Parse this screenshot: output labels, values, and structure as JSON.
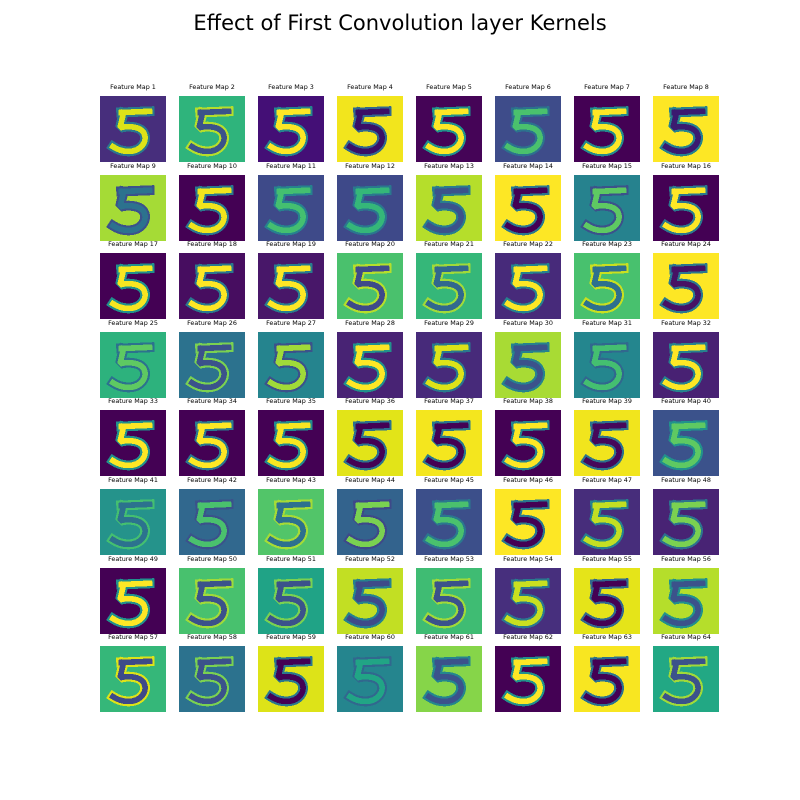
{
  "chart_data": {
    "type": "heatmap",
    "title": "Effect of First Convolution layer Kernels",
    "label_prefix": "Feature Map",
    "grid": {
      "rows": 8,
      "cols": 8
    },
    "colormap": "viridis",
    "feature_maps": [
      {
        "label": "Feature Map 1",
        "background": "#472e7c",
        "stroke": "#dde318",
        "edge": "#2a788e"
      },
      {
        "label": "Feature Map 2",
        "background": "#2fb47c",
        "stroke": "#3b528b",
        "edge": "#b5de2b"
      },
      {
        "label": "Feature Map 3",
        "background": "#440f76",
        "stroke": "#fde725",
        "edge": "#25838e"
      },
      {
        "label": "Feature Map 4",
        "background": "#f2e51d",
        "stroke": "#3a0f66",
        "edge": "#31688e"
      },
      {
        "label": "Feature Map 5",
        "background": "#450457",
        "stroke": "#fde725",
        "edge": "#21918c"
      },
      {
        "label": "Feature Map 6",
        "background": "#3e4c8a",
        "stroke": "#4ac16d",
        "edge": "#2c728e"
      },
      {
        "label": "Feature Map 7",
        "background": "#440154",
        "stroke": "#fde725",
        "edge": "#238a8d"
      },
      {
        "label": "Feature Map 8",
        "background": "#fde725",
        "stroke": "#3b1a70",
        "edge": "#26828e"
      },
      {
        "label": "Feature Map 9",
        "background": "#a5db36",
        "stroke": "#2c728e",
        "edge": "#3b528b"
      },
      {
        "label": "Feature Map 10",
        "background": "#440154",
        "stroke": "#f1e51d",
        "edge": "#2a788e"
      },
      {
        "label": "Feature Map 11",
        "background": "#3e4a89",
        "stroke": "#44bf70",
        "edge": "#26828e"
      },
      {
        "label": "Feature Map 12",
        "background": "#3e4989",
        "stroke": "#35b779",
        "edge": "#2a788e"
      },
      {
        "label": "Feature Map 13",
        "background": "#b5de2b",
        "stroke": "#3b528b",
        "edge": "#287d8e"
      },
      {
        "label": "Feature Map 14",
        "background": "#fde725",
        "stroke": "#440154",
        "edge": "#2a788e"
      },
      {
        "label": "Feature Map 15",
        "background": "#26828e",
        "stroke": "#5ec962",
        "edge": "#3b528b"
      },
      {
        "label": "Feature Map 16",
        "background": "#440154",
        "stroke": "#fde725",
        "edge": "#2a788e"
      },
      {
        "label": "Feature Map 17",
        "background": "#440154",
        "stroke": "#f8e621",
        "edge": "#21918c"
      },
      {
        "label": "Feature Map 18",
        "background": "#470d60",
        "stroke": "#fde725",
        "edge": "#2a788e"
      },
      {
        "label": "Feature Map 19",
        "background": "#481769",
        "stroke": "#fde725",
        "edge": "#287d8e"
      },
      {
        "label": "Feature Map 20",
        "background": "#4ac16d",
        "stroke": "#3e4a89",
        "edge": "#b5de2b"
      },
      {
        "label": "Feature Map 21",
        "background": "#35b779",
        "stroke": "#31688e",
        "edge": "#a0da39"
      },
      {
        "label": "Feature Map 22",
        "background": "#472a7a",
        "stroke": "#fde725",
        "edge": "#26828e"
      },
      {
        "label": "Feature Map 23",
        "background": "#48c16e",
        "stroke": "#2d708e",
        "edge": "#c8e020"
      },
      {
        "label": "Feature Map 24",
        "background": "#fde725",
        "stroke": "#471164",
        "edge": "#2a788e"
      },
      {
        "label": "Feature Map 25",
        "background": "#2db27d",
        "stroke": "#5ec962",
        "edge": "#2c728e"
      },
      {
        "label": "Feature Map 26",
        "background": "#2c728e",
        "stroke": "#3b528b",
        "edge": "#7ad151"
      },
      {
        "label": "Feature Map 27",
        "background": "#25848e",
        "stroke": "#a0da39",
        "edge": "#3b528b"
      },
      {
        "label": "Feature Map 28",
        "background": "#482374",
        "stroke": "#fde725",
        "edge": "#21918c"
      },
      {
        "label": "Feature Map 29",
        "background": "#472a7a",
        "stroke": "#dde318",
        "edge": "#2a788e"
      },
      {
        "label": "Feature Map 30",
        "background": "#a8db34",
        "stroke": "#3b528b",
        "edge": "#26828e"
      },
      {
        "label": "Feature Map 31",
        "background": "#24868e",
        "stroke": "#44bf70",
        "edge": "#31688e"
      },
      {
        "label": "Feature Map 32",
        "background": "#482173",
        "stroke": "#fde725",
        "edge": "#26828e"
      },
      {
        "label": "Feature Map 33",
        "background": "#440154",
        "stroke": "#fde725",
        "edge": "#21918c"
      },
      {
        "label": "Feature Map 34",
        "background": "#440154",
        "stroke": "#fde725",
        "edge": "#2a788e"
      },
      {
        "label": "Feature Map 35",
        "background": "#440154",
        "stroke": "#f8e621",
        "edge": "#238a8d"
      },
      {
        "label": "Feature Map 36",
        "background": "#e2e418",
        "stroke": "#440154",
        "edge": "#2c728e"
      },
      {
        "label": "Feature Map 37",
        "background": "#f4e61e",
        "stroke": "#440154",
        "edge": "#2a788e"
      },
      {
        "label": "Feature Map 38",
        "background": "#440154",
        "stroke": "#fde725",
        "edge": "#26828e"
      },
      {
        "label": "Feature Map 39",
        "background": "#f1e51d",
        "stroke": "#46075a",
        "edge": "#2c728e"
      },
      {
        "label": "Feature Map 40",
        "background": "#3b528b",
        "stroke": "#5ec962",
        "edge": "#21918c"
      },
      {
        "label": "Feature Map 41",
        "background": "#25938b",
        "stroke": "#2c728e",
        "edge": "#44bf70"
      },
      {
        "label": "Feature Map 42",
        "background": "#31688e",
        "stroke": "#4ac16d",
        "edge": "#3b528b"
      },
      {
        "label": "Feature Map 43",
        "background": "#52c569",
        "stroke": "#2d708e",
        "edge": "#a5db36"
      },
      {
        "label": "Feature Map 44",
        "background": "#33638d",
        "stroke": "#7ad151",
        "edge": "#3e4989"
      },
      {
        "label": "Feature Map 45",
        "background": "#3c4f8a",
        "stroke": "#4ac16d",
        "edge": "#2a788e"
      },
      {
        "label": "Feature Map 46",
        "background": "#fde725",
        "stroke": "#440154",
        "edge": "#2a788e"
      },
      {
        "label": "Feature Map 47",
        "background": "#472d7b",
        "stroke": "#c2df23",
        "edge": "#26828e"
      },
      {
        "label": "Feature Map 48",
        "background": "#482374",
        "stroke": "#7ad151",
        "edge": "#2c728e"
      },
      {
        "label": "Feature Map 49",
        "background": "#440154",
        "stroke": "#fde725",
        "edge": "#21918c"
      },
      {
        "label": "Feature Map 50",
        "background": "#48c16e",
        "stroke": "#3b528b",
        "edge": "#a0da39"
      },
      {
        "label": "Feature Map 51",
        "background": "#20a386",
        "stroke": "#3b528b",
        "edge": "#7ad151"
      },
      {
        "label": "Feature Map 52",
        "background": "#c2df23",
        "stroke": "#3e4a89",
        "edge": "#26828e"
      },
      {
        "label": "Feature Map 53",
        "background": "#3fbc73",
        "stroke": "#3b528b",
        "edge": "#a0da39"
      },
      {
        "label": "Feature Map 54",
        "background": "#472f7d",
        "stroke": "#c8e020",
        "edge": "#2a788e"
      },
      {
        "label": "Feature Map 55",
        "background": "#e5e419",
        "stroke": "#440154",
        "edge": "#31688e"
      },
      {
        "label": "Feature Map 56",
        "background": "#b5de2b",
        "stroke": "#3b528b",
        "edge": "#21918c"
      },
      {
        "label": "Feature Map 57",
        "background": "#35b779",
        "stroke": "#3e4a89",
        "edge": "#dde318"
      },
      {
        "label": "Feature Map 58",
        "background": "#2c728e",
        "stroke": "#3b528b",
        "edge": "#7ad151"
      },
      {
        "label": "Feature Map 59",
        "background": "#dde318",
        "stroke": "#440154",
        "edge": "#2a788e"
      },
      {
        "label": "Feature Map 60",
        "background": "#25858e",
        "stroke": "#21a585",
        "edge": "#31688e"
      },
      {
        "label": "Feature Map 61",
        "background": "#86d549",
        "stroke": "#3b528b",
        "edge": "#24868e"
      },
      {
        "label": "Feature Map 62",
        "background": "#440154",
        "stroke": "#fde725",
        "edge": "#21918c"
      },
      {
        "label": "Feature Map 63",
        "background": "#f8e621",
        "stroke": "#440154",
        "edge": "#2c728e"
      },
      {
        "label": "Feature Map 64",
        "background": "#22a884",
        "stroke": "#3b528b",
        "edge": "#a0da39"
      }
    ]
  }
}
